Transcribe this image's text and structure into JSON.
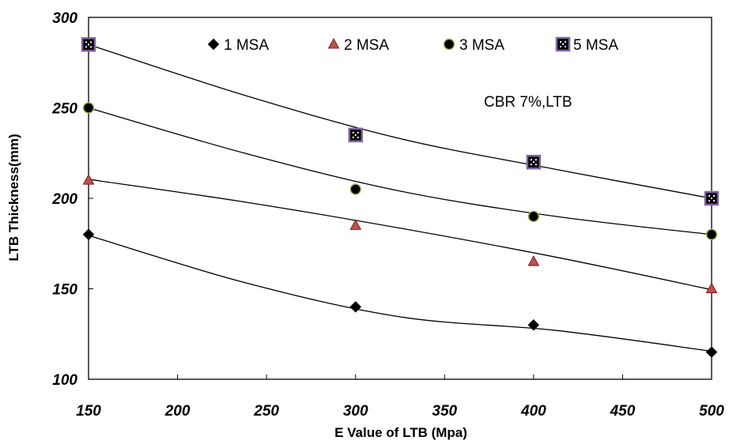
{
  "chart_data": {
    "type": "scatter",
    "title": "",
    "xlabel": "E Value  of LTB (Mpa)",
    "ylabel": "LTB Thickness(mm)",
    "xlim": [
      150,
      500
    ],
    "ylim": [
      100,
      300
    ],
    "xticks": [
      150,
      200,
      250,
      300,
      350,
      400,
      450,
      500
    ],
    "yticks": [
      100,
      150,
      200,
      250,
      300
    ],
    "grid": false,
    "legend_position": "top",
    "annotation": "CBR 7%,LTB",
    "x": [
      150,
      300,
      400,
      500
    ],
    "series": [
      {
        "name": "1 MSA",
        "marker": "diamond",
        "color": "#000000",
        "stroke": "#000000",
        "values": [
          180,
          140,
          130,
          115
        ],
        "trend_fit": [
          179.5,
          153.5,
          134.5,
          127.0,
          115.5
        ]
      },
      {
        "name": "2 MSA",
        "marker": "triangle",
        "color": "#c0504d",
        "stroke": "#7a1f1c",
        "values": [
          210,
          185,
          165,
          150
        ],
        "trend_fit": [
          210.5,
          198.0,
          183.5,
          167.5,
          149.5
        ]
      },
      {
        "name": "3 MSA",
        "marker": "circle",
        "color": "#000000",
        "stroke": "#9bbb59",
        "values": [
          250,
          205,
          190,
          180
        ],
        "trend_fit": [
          250.0,
          225.0,
          204.0,
          190.0,
          180.0
        ]
      },
      {
        "name": "5 MSA",
        "marker": "square",
        "color": "#000000",
        "stroke": "#8064a2",
        "values": [
          285,
          235,
          220,
          200
        ],
        "trend_fit": [
          285.0,
          257.0,
          233.0,
          216.0,
          200.0
        ]
      }
    ]
  }
}
